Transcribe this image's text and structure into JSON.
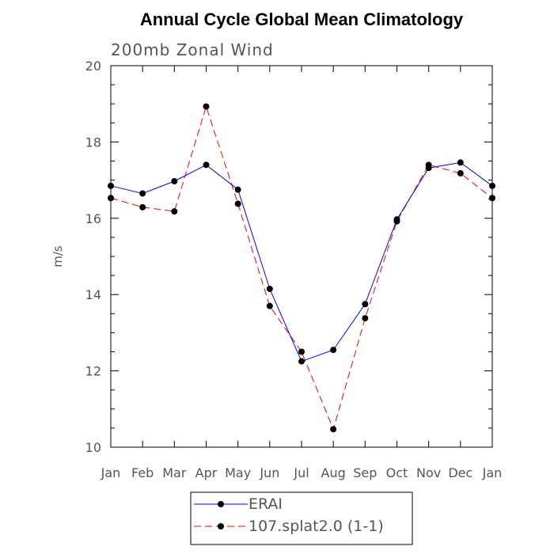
{
  "chart_data": {
    "type": "line",
    "title": "Annual Cycle Global Mean Climatology",
    "subtitle": "200mb Zonal Wind",
    "xlabel": "",
    "ylabel": "m/s",
    "categories": [
      "Jan",
      "Feb",
      "Mar",
      "Apr",
      "May",
      "Jun",
      "Jul",
      "Aug",
      "Sep",
      "Oct",
      "Nov",
      "Dec",
      "Jan"
    ],
    "ylim": [
      10,
      20
    ],
    "yticks": [
      10,
      12,
      14,
      16,
      18,
      20
    ],
    "grid": false,
    "legend_position": "bottom-center",
    "series": [
      {
        "name": "ERAI",
        "color": "#0000ff",
        "line_style": "solid",
        "marker": "filled-circle",
        "values": [
          16.85,
          16.65,
          16.97,
          17.4,
          16.75,
          14.15,
          12.25,
          12.55,
          13.75,
          15.97,
          17.32,
          17.46,
          16.85
        ]
      },
      {
        "name": "107.splat2.0 (1-1)",
        "color": "#ff0000",
        "line_style": "dashed",
        "marker": "filled-circle",
        "values": [
          16.53,
          16.29,
          16.18,
          18.93,
          16.38,
          13.7,
          12.5,
          10.47,
          13.38,
          15.92,
          17.4,
          17.18,
          16.53
        ]
      }
    ]
  }
}
